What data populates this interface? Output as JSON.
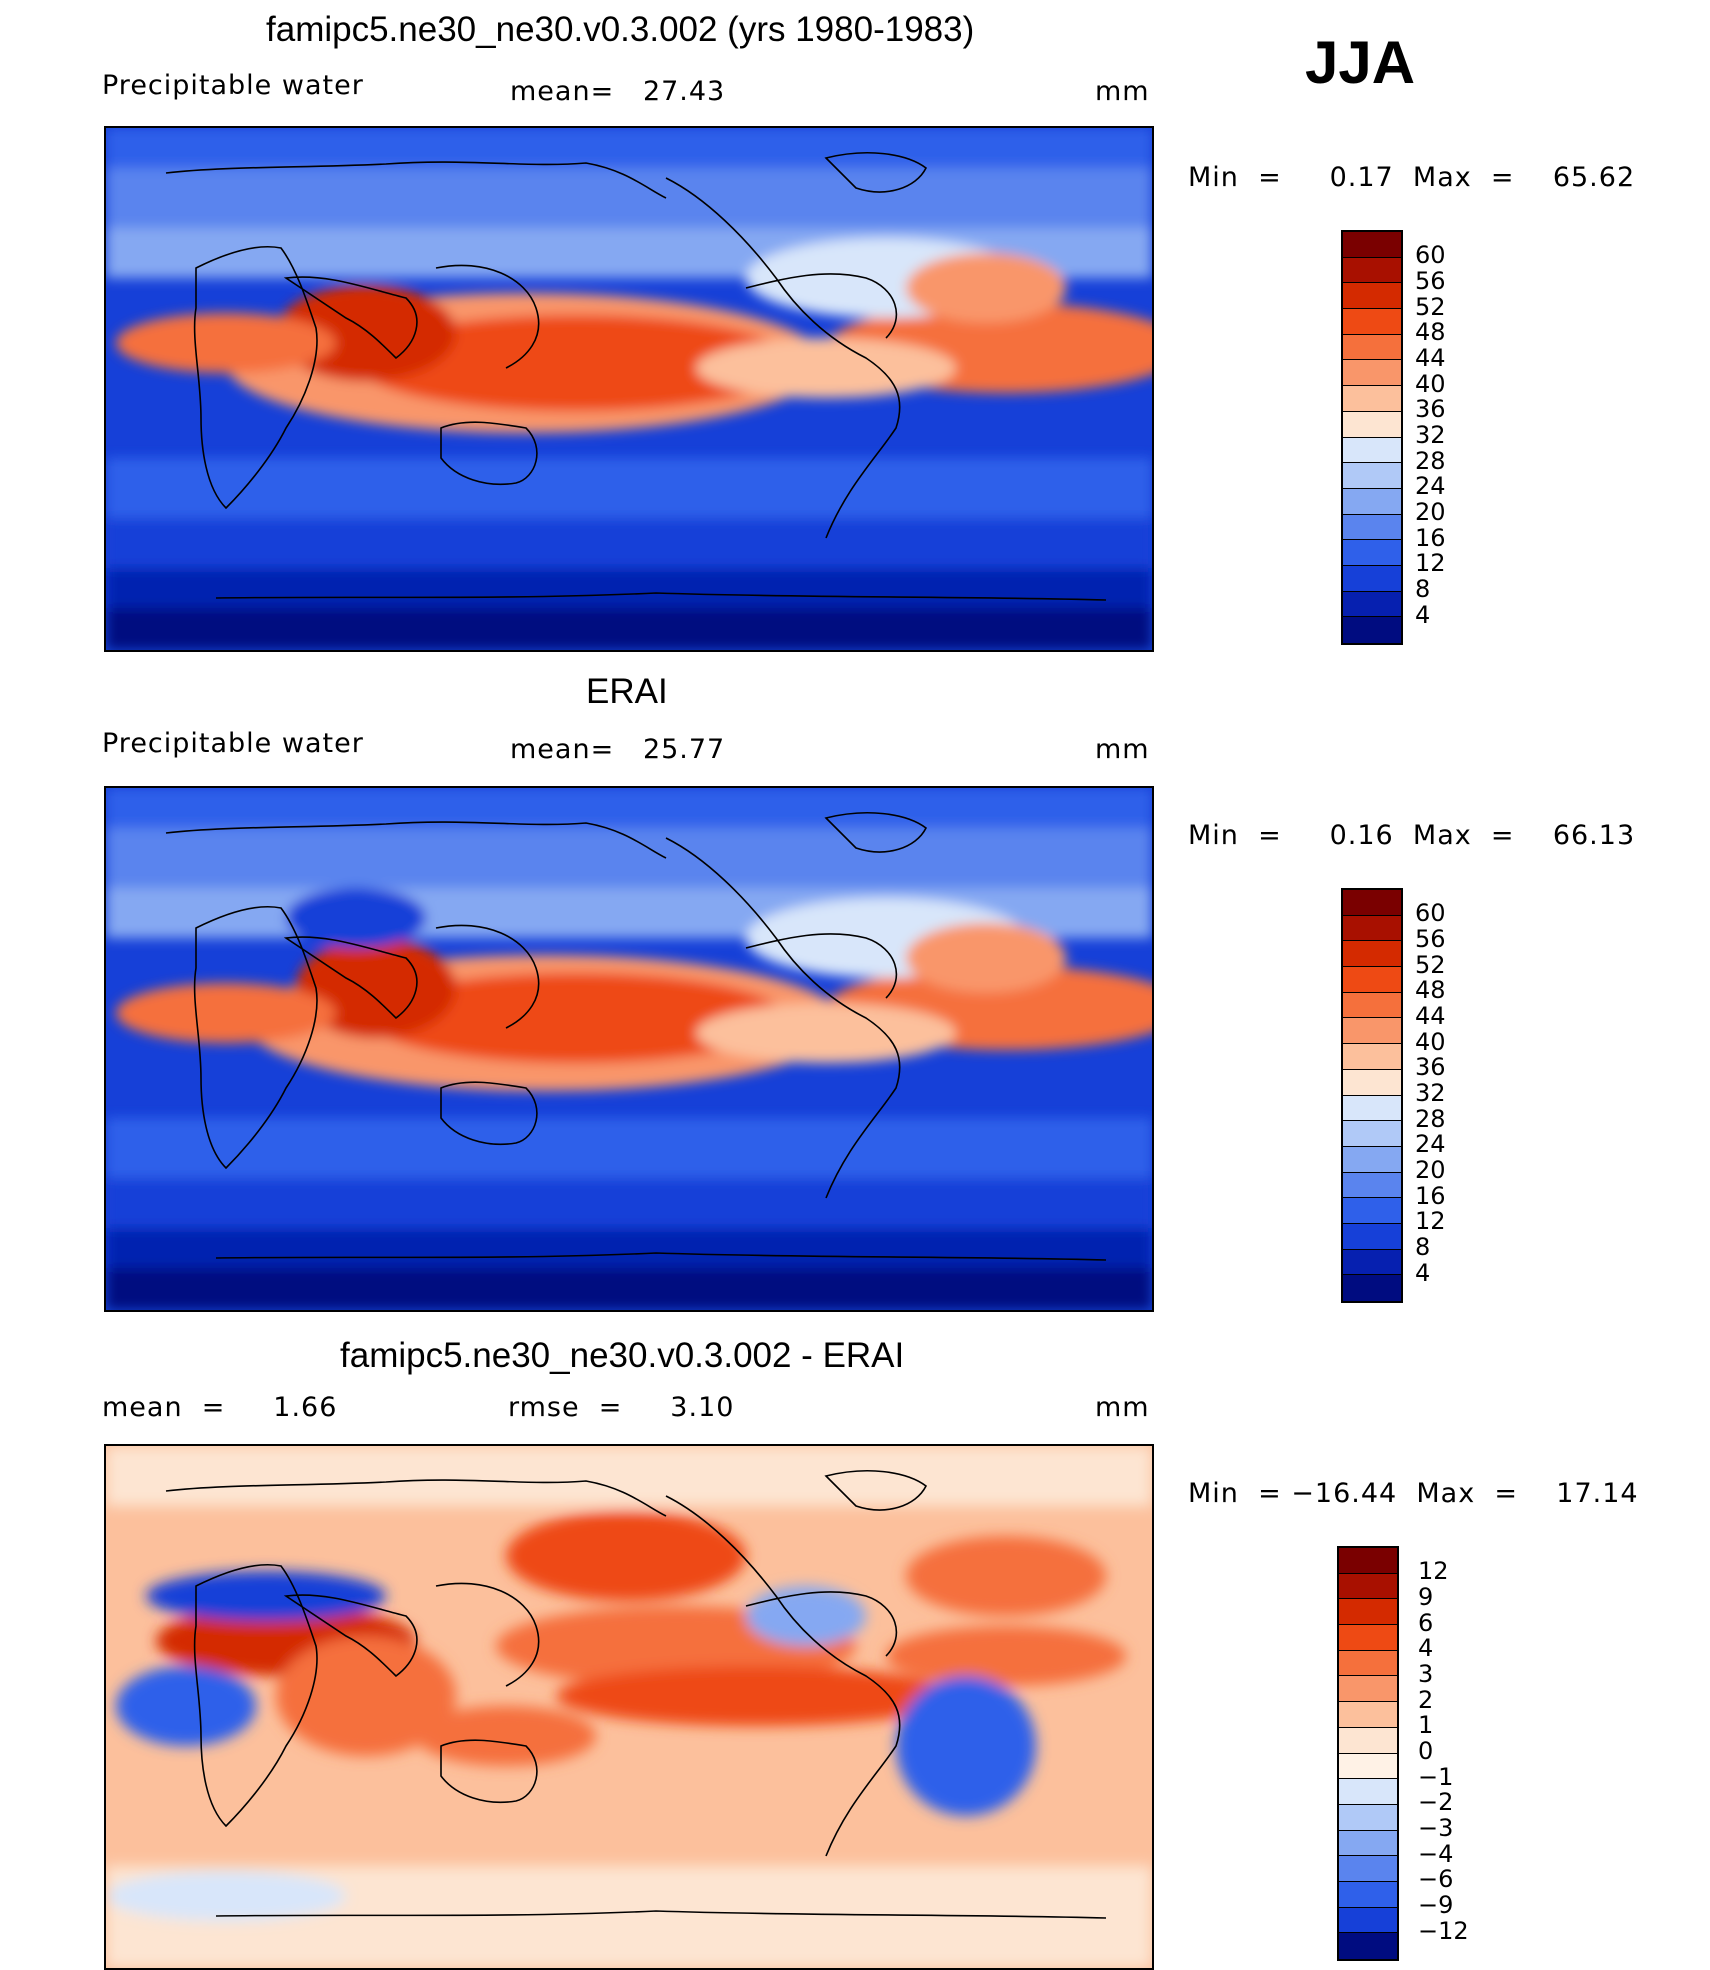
{
  "season": "JJA",
  "panels": [
    {
      "title": "famipc5.ne30_ne30.v0.3.002 (yrs 1980-1983)",
      "left_label": "Precipitable  water",
      "mid_label": "mean=   27.43",
      "unit": "mm",
      "minmax": "Min  =     0.17  Max  =    65.62",
      "colorbar_labels": [
        "60",
        "56",
        "52",
        "48",
        "44",
        "40",
        "36",
        "32",
        "28",
        "24",
        "20",
        "16",
        "12",
        "8",
        "4"
      ]
    },
    {
      "title": "ERAI",
      "left_label": "Precipitable  water",
      "mid_label": "mean=   25.77",
      "unit": "mm",
      "minmax": "Min  =     0.16  Max  =    66.13",
      "colorbar_labels": [
        "60",
        "56",
        "52",
        "48",
        "44",
        "40",
        "36",
        "32",
        "28",
        "24",
        "20",
        "16",
        "12",
        "8",
        "4"
      ]
    },
    {
      "title": "famipc5.ne30_ne30.v0.3.002 - ERAI",
      "left_label": "mean  =     1.66",
      "mid_label": "rmse  =     3.10",
      "unit": "mm",
      "minmax": "Min  = −16.44  Max  =    17.14",
      "colorbar_labels": [
        "12",
        "9",
        "6",
        "4",
        "3",
        "2",
        "1",
        "0",
        "−1",
        "−2",
        "−3",
        "−4",
        "−6",
        "−9",
        "−12"
      ]
    }
  ],
  "colors": {
    "field_scale": [
      "#7a0000",
      "#a81000",
      "#d42a00",
      "#ee4a14",
      "#f5703c",
      "#f9966a",
      "#fcc09c",
      "#fde5d2",
      "#d8e6fa",
      "#b0c9f7",
      "#85a8f2",
      "#5a84ee",
      "#2f60ea",
      "#1640d8",
      "#0620b0",
      "#000c80"
    ],
    "diff_scale": [
      "#7a0000",
      "#a81000",
      "#d42a00",
      "#ee4a14",
      "#f5703c",
      "#f9966a",
      "#fcc09c",
      "#fde5d2",
      "#fff2e6",
      "#d8e6fa",
      "#b0c9f7",
      "#85a8f2",
      "#5a84ee",
      "#2f60ea",
      "#1640d8",
      "#000c80"
    ]
  }
}
